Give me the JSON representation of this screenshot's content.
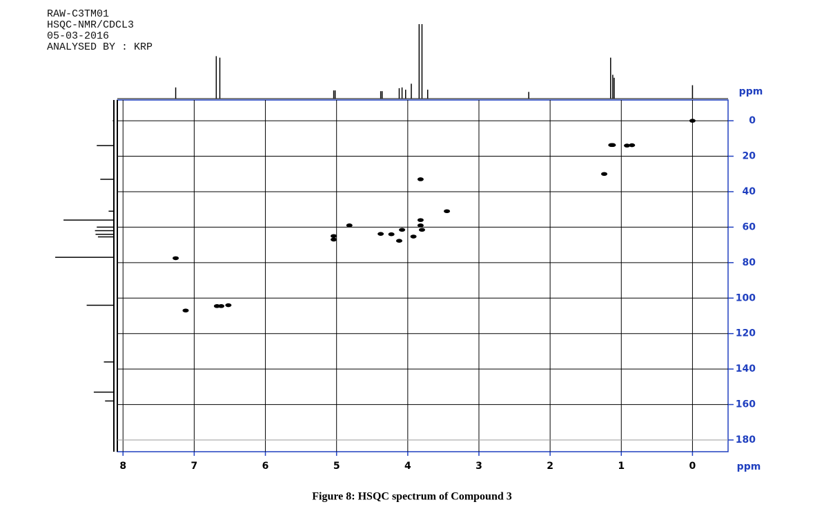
{
  "chart_data": {
    "type": "scatter",
    "annotations": [
      "RAW-C3TM01",
      "HSQC-NMR/CDCL3",
      "05-03-2016",
      "ANALYSED BY  :  KRP"
    ],
    "caption": "Figure 8: HSQC spectrum of Compound 3",
    "x_label": "ppm",
    "y_label": "ppm",
    "xlim": [
      8.08,
      -0.5
    ],
    "ylim": [
      -11.7,
      186.6
    ],
    "xticks": [
      8,
      7,
      6,
      5,
      4,
      3,
      2,
      1,
      0
    ],
    "yticks": [
      0,
      20,
      40,
      60,
      80,
      100,
      120,
      140,
      160,
      180
    ],
    "grid": true,
    "color": "#000000",
    "axis_color": "#1f3fbf",
    "x": [
      0,
      1.12,
      1.14,
      0.92,
      0.85,
      1.24,
      3.82,
      3.45,
      3.82,
      3.82,
      3.8,
      4.08,
      3.92,
      4.38,
      4.23,
      4.12,
      5.04,
      5.04,
      4.82,
      7.26,
      7.12,
      6.68,
      6.62,
      6.52
    ],
    "y": [
      0,
      13.7,
      13.7,
      14,
      13.8,
      30,
      33,
      51,
      56,
      59,
      61.5,
      61.5,
      65.3,
      63.8,
      64,
      67.7,
      65,
      67,
      59,
      77.5,
      107,
      104.5,
      104.5,
      104
    ],
    "top_projection": {
      "x": [
        7.26,
        6.69,
        6.64,
        5.04,
        5.02,
        4.38,
        4.36,
        4.12,
        4.08,
        4.03,
        3.95,
        3.84,
        3.8,
        3.72,
        2.3,
        1.15,
        1.12,
        1.1,
        0
      ],
      "values": [
        15,
        57,
        55,
        11,
        11,
        10,
        10,
        14,
        15,
        12,
        20,
        100,
        100,
        12,
        9,
        55,
        32,
        28,
        18
      ]
    },
    "left_projection": {
      "y": [
        0,
        14,
        33,
        51,
        56,
        60,
        62,
        64,
        65.5,
        77,
        104,
        136,
        153,
        158
      ],
      "values": [
        3,
        30,
        24,
        10,
        86,
        30,
        33,
        32,
        28,
        100,
        47,
        18,
        35,
        16
      ]
    }
  }
}
